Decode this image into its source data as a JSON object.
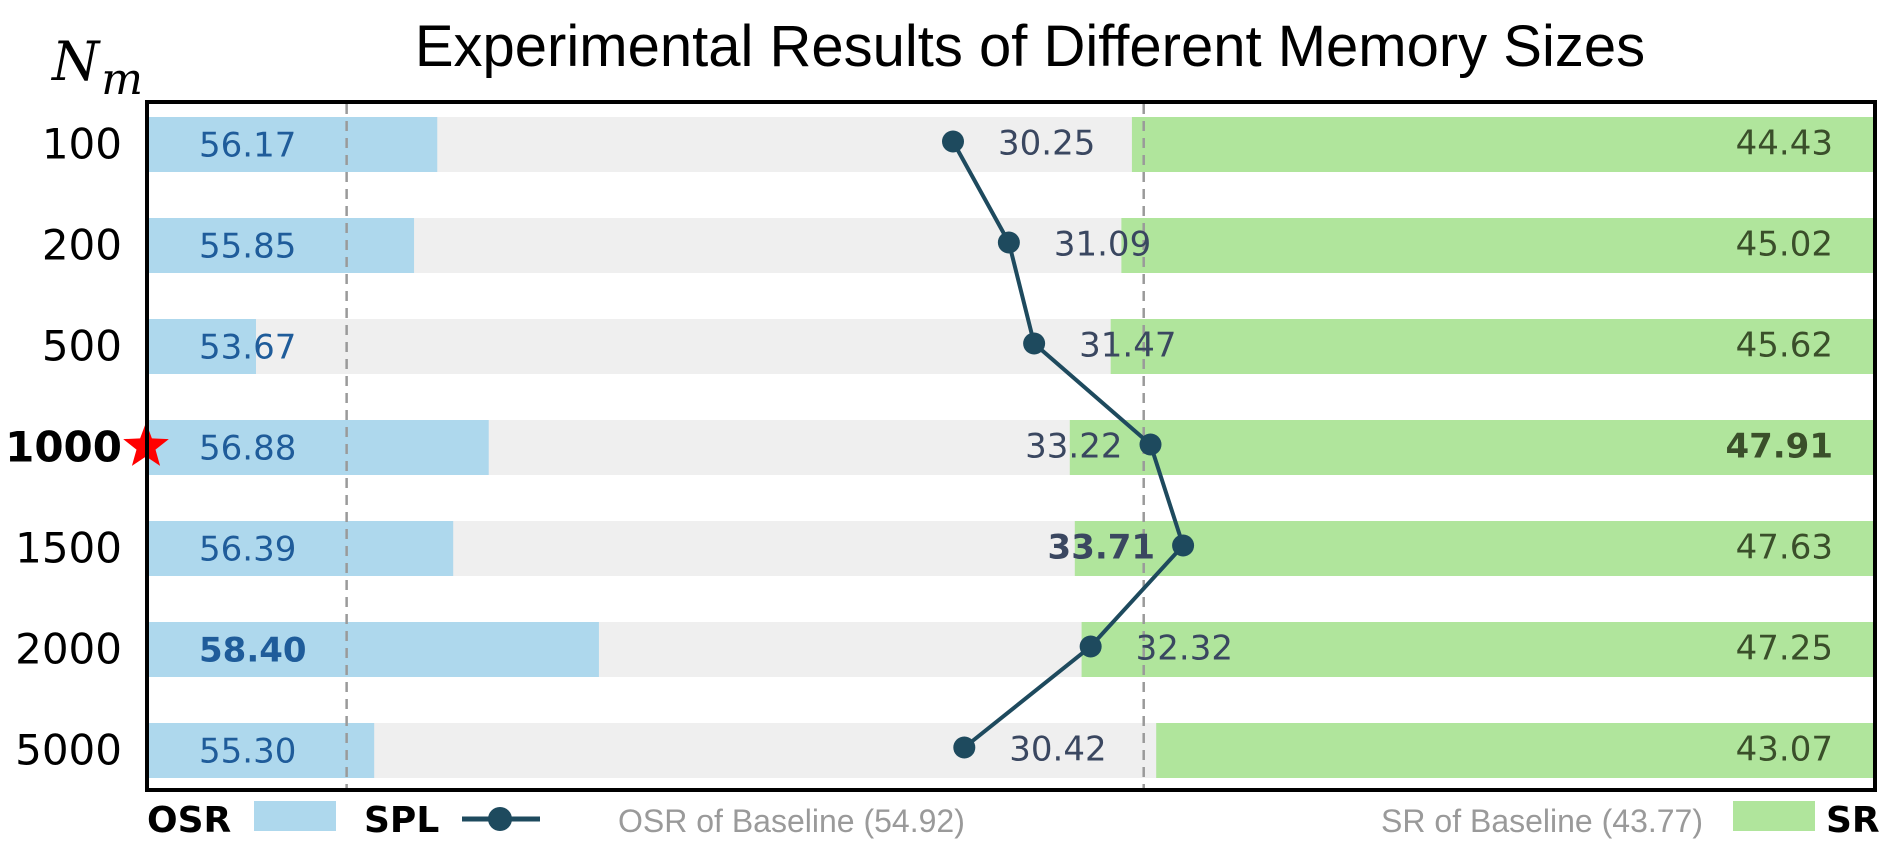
{
  "chart_data": {
    "type": "bar",
    "title": "Experimental Results of Different Memory Sizes",
    "y_axis_title": "N",
    "y_axis_title_sub": "m",
    "categories": [
      "100",
      "200",
      "500",
      "1000",
      "1500",
      "2000",
      "5000"
    ],
    "highlight_category": "1000",
    "series": [
      {
        "name": "OSR",
        "type": "bar",
        "direction": "left-to-right",
        "color": "#aed8ed",
        "values": [
          56.17,
          55.85,
          53.67,
          56.88,
          56.39,
          58.4,
          55.3
        ],
        "labels": [
          "56.17",
          "55.85",
          "53.67",
          "56.88",
          "56.39",
          "58.40",
          "55.30"
        ],
        "bold_index": 5
      },
      {
        "name": "SPL",
        "type": "line",
        "color": "#1e4a5e",
        "values": [
          30.25,
          31.09,
          31.47,
          33.22,
          33.71,
          32.32,
          30.42
        ],
        "labels": [
          "30.25",
          "31.09",
          "31.47",
          "33.22",
          "33.71",
          "32.32",
          "30.42"
        ],
        "bold_index": 4
      },
      {
        "name": "SR",
        "type": "bar",
        "direction": "right-to-left",
        "color": "#b0e59c",
        "values": [
          44.43,
          45.02,
          45.62,
          47.91,
          47.63,
          47.25,
          43.07
        ],
        "labels": [
          "44.43",
          "45.02",
          "45.62",
          "47.91",
          "47.63",
          "47.25",
          "43.07"
        ],
        "bold_index": 3
      }
    ],
    "reference_lines": [
      {
        "label": "OSR of Baseline (54.92)",
        "value": 54.92,
        "series": "OSR"
      },
      {
        "label": "SR of Baseline (43.77)",
        "value": 43.77,
        "series": "SR"
      }
    ],
    "legend": {
      "placement": "bottom",
      "items": [
        "OSR",
        "SPL",
        "SR"
      ]
    },
    "colors": {
      "track": "#efefef",
      "osr": "#aed8ed",
      "sr": "#b0e59c",
      "spl": "#1e4a5e",
      "star": "#ff0000",
      "baseline": "#9a9a9a"
    }
  }
}
